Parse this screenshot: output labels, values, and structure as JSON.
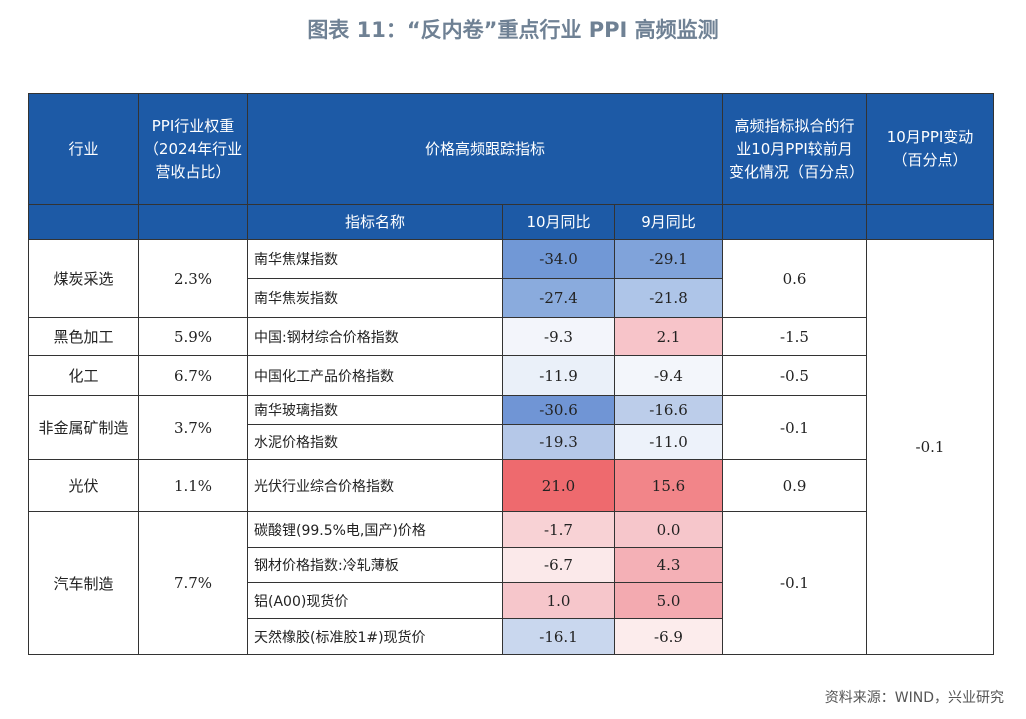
{
  "title": "图表 11：“反内卷”重点行业 PPI 高频监测",
  "headers": {
    "industry": "行业",
    "weight": "PPI行业权重（2024年行业营收占比）",
    "tracking": "价格高频跟踪指标",
    "fitted": "高频指标拟合的行业10月PPI较前月变化情况（百分点）",
    "ppi_change": "10月PPI变动（百分点）",
    "indicator_name": "指标名称",
    "oct_yoy": "10月同比",
    "sep_yoy": "9月同比"
  },
  "groups": [
    {
      "industry": "煤炭采选",
      "weight": "2.3%",
      "fitted": "0.6",
      "rows": [
        {
          "name": "南华焦煤指数",
          "oct": "-34.0",
          "sep": "-29.1",
          "oct_color": "#7198d6",
          "sep_color": "#80a3da"
        },
        {
          "name": "南华焦炭指数",
          "oct": "-27.4",
          "sep": "-21.8",
          "oct_color": "#8aabdd",
          "sep_color": "#aec5e8"
        }
      ]
    },
    {
      "industry": "黑色加工",
      "weight": "5.9%",
      "fitted": "-1.5",
      "rows": [
        {
          "name": "中国:钢材综合价格指数",
          "oct": "-9.3",
          "sep": "2.1",
          "oct_color": "#f3f5fb",
          "sep_color": "#f7c4c9"
        }
      ]
    },
    {
      "industry": "化工",
      "weight": "6.7%",
      "fitted": "-0.5",
      "rows": [
        {
          "name": "中国化工产品价格指数",
          "oct": "-11.9",
          "sep": "-9.4",
          "oct_color": "#eaf0f9",
          "sep_color": "#f3f6fb"
        }
      ]
    },
    {
      "industry": "非金属矿制造",
      "weight": "3.7%",
      "fitted": "-0.1",
      "rows": [
        {
          "name": "南华玻璃指数",
          "oct": "-30.6",
          "sep": "-16.6",
          "oct_color": "#7095d5",
          "sep_color": "#bccdea"
        },
        {
          "name": "水泥价格指数",
          "oct": "-19.3",
          "sep": "-11.0",
          "oct_color": "#b5c8e8",
          "sep_color": "#edf2fa"
        }
      ]
    },
    {
      "industry": "光伏",
      "weight": "1.1%",
      "fitted": "0.9",
      "rows": [
        {
          "name": "光伏行业综合价格指数",
          "oct": "21.0",
          "sep": "15.6",
          "oct_color": "#ee6a6e",
          "sep_color": "#f28589"
        }
      ]
    },
    {
      "industry": "汽车制造",
      "weight": "7.7%",
      "fitted": "-0.1",
      "rows": [
        {
          "name": "碳酸锂(99.5%电,国产)价格",
          "oct": "-1.7",
          "sep": "0.0",
          "oct_color": "#f8d2d5",
          "sep_color": "#f6c6cb"
        },
        {
          "name": "钢材价格指数:冷轧薄板",
          "oct": "-6.7",
          "sep": "4.3",
          "oct_color": "#fbe9ea",
          "sep_color": "#f4b0b6"
        },
        {
          "name": "铝(A00)现货价",
          "oct": "1.0",
          "sep": "5.0",
          "oct_color": "#f6c6cb",
          "sep_color": "#f3aab0"
        },
        {
          "name": "天然橡胶(标准胶1#)现货价",
          "oct": "-16.1",
          "sep": "-6.9",
          "oct_color": "#c9d7ee",
          "sep_color": "#fcecec"
        }
      ]
    }
  ],
  "ppi_change": "-0.1",
  "source": "资料来源：WIND，兴业研究"
}
